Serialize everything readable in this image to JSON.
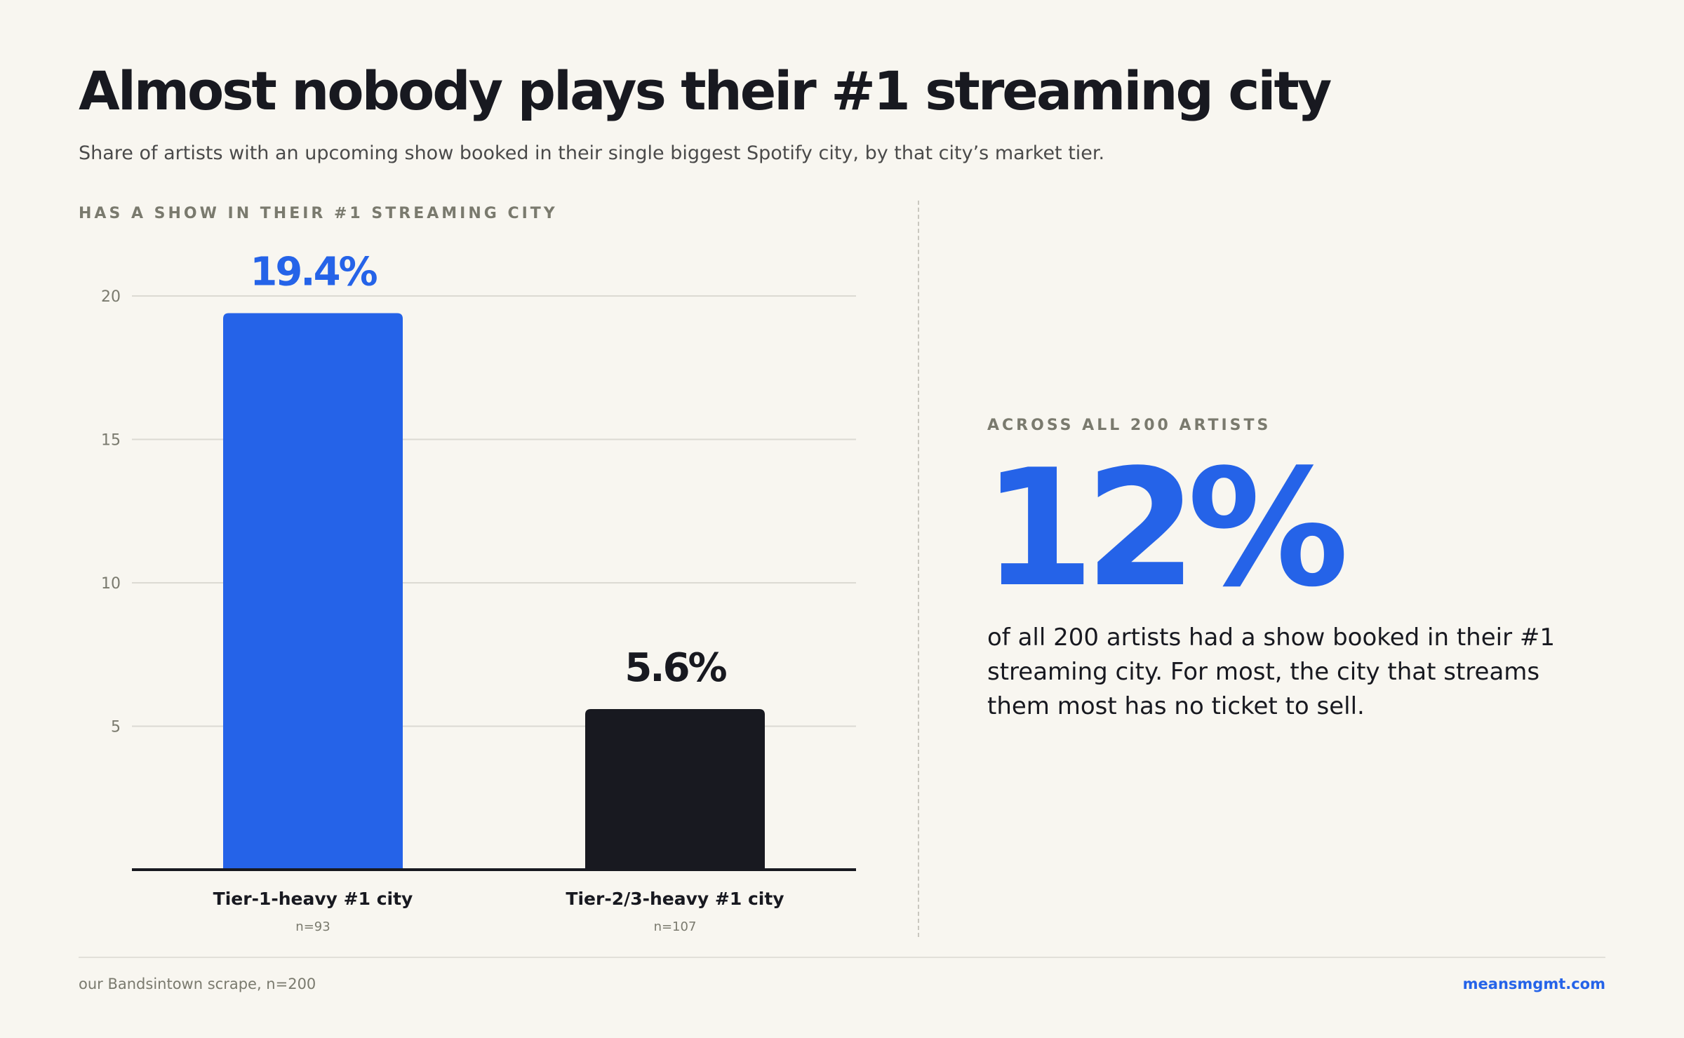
{
  "header": {
    "title": "Almost nobody plays their #1 streaming city",
    "subtitle": "Share of artists with an upcoming show booked in their single biggest Spotify city, by that city’s market tier."
  },
  "chart_eyebrow": "HAS A SHOW IN THEIR #1 STREAMING CITY",
  "chart_data": {
    "type": "bar",
    "title": "HAS A SHOW IN THEIR #1 STREAMING CITY",
    "categories": [
      "Tier-1-heavy #1 city",
      "Tier-2/3-heavy #1 city"
    ],
    "values": [
      19.4,
      5.6
    ],
    "value_labels": [
      "19.4%",
      "5.6%"
    ],
    "sample_sizes": [
      "n=93",
      "n=107"
    ],
    "bar_colors": [
      "#2563e8",
      "#181920"
    ],
    "ylim": [
      0,
      20
    ],
    "yticks": [
      5,
      10,
      15,
      20
    ],
    "grid": true
  },
  "stat": {
    "eyebrow": "ACROSS ALL 200 ARTISTS",
    "value": "12%",
    "text": "of all 200 artists had a show booked in their #1 streaming city. For most, the city that streams them most has no ticket to sell."
  },
  "footer": {
    "source": "our Bandsintown scrape, n=200",
    "brand": "meansmgmt.com"
  },
  "colors": {
    "background": "#f8f6f0",
    "accent": "#2563e8",
    "ink": "#181920",
    "muted": "#7a7a6e"
  }
}
